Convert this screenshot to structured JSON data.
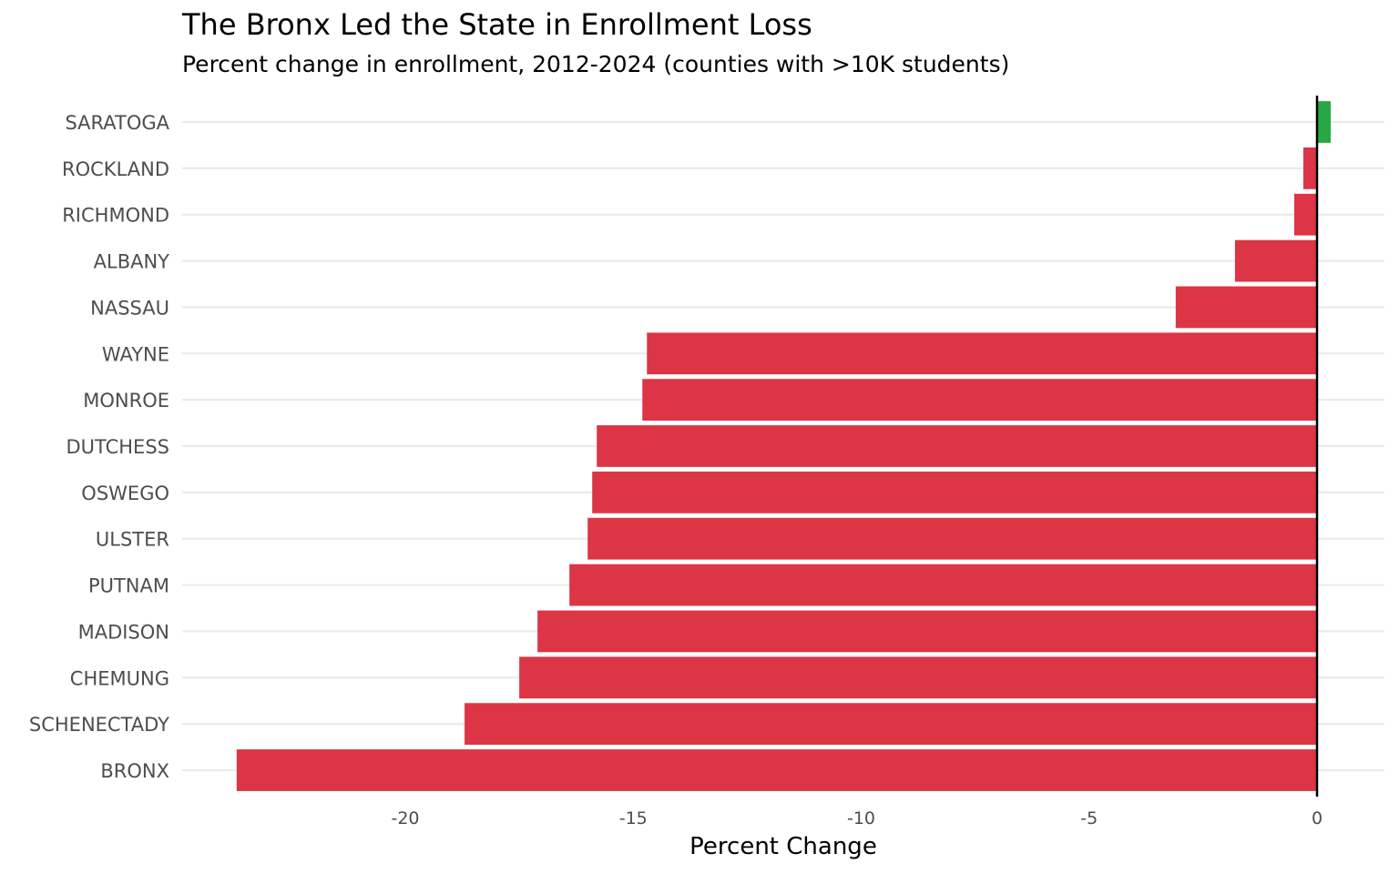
{
  "chart_data": {
    "type": "bar",
    "orientation": "horizontal",
    "title": "The Bronx Led the State in Enrollment Loss",
    "subtitle": "Percent change in enrollment, 2012-2024 (counties with >10K students)",
    "xlabel": "Percent Change",
    "ylabel": "",
    "xlim": [
      -24.8,
      1.5
    ],
    "xticks": [
      -20,
      -15,
      -10,
      -5,
      0
    ],
    "xtick_labels": [
      "-20",
      "-15",
      "-10",
      "-5",
      "0"
    ],
    "grid": true,
    "legend": "none",
    "categories": [
      "SARATOGA",
      "ROCKLAND",
      "RICHMOND",
      "ALBANY",
      "NASSAU",
      "WAYNE",
      "MONROE",
      "DUTCHESS",
      "OSWEGO",
      "ULSTER",
      "PUTNAM",
      "MADISON",
      "CHEMUNG",
      "SCHENECTADY",
      "BRONX"
    ],
    "values": [
      0.3,
      -0.3,
      -0.5,
      -1.8,
      -3.1,
      -14.7,
      -14.8,
      -15.8,
      -15.9,
      -16.0,
      -16.4,
      -17.1,
      -17.5,
      -18.7,
      -23.7
    ],
    "colors": {
      "positive": "#28a745",
      "negative": "#dc3545",
      "zero_line": "#000000",
      "grid": "#ebebeb"
    }
  }
}
